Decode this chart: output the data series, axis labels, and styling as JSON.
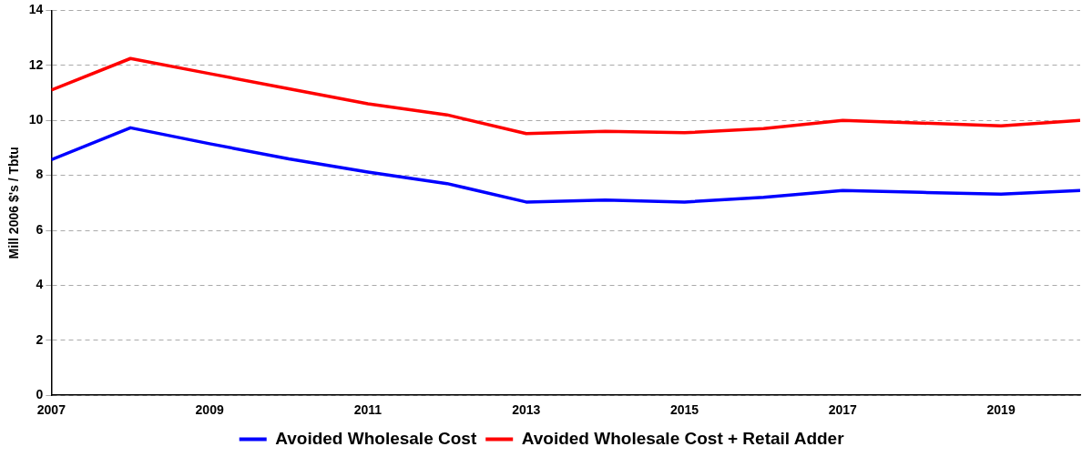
{
  "chart_data": {
    "type": "line",
    "ylabel": "Mill 2006 $'s / Tbtu",
    "x": [
      2007,
      2008,
      2009,
      2010,
      2011,
      2012,
      2013,
      2014,
      2015,
      2016,
      2017,
      2018,
      2019,
      2020
    ],
    "xlim": [
      2007,
      2020
    ],
    "xticks": [
      2007,
      2009,
      2011,
      2013,
      2015,
      2017,
      2019
    ],
    "ylim": [
      0,
      14
    ],
    "yticks": [
      0,
      2,
      4,
      6,
      8,
      10,
      12,
      14
    ],
    "grid": "y",
    "legend": "bottom",
    "marker": "none",
    "series": [
      {
        "name": "Avoided Wholesale Cost",
        "color": "#0000ff",
        "values": [
          8.57,
          9.73,
          9.15,
          8.6,
          8.12,
          7.7,
          7.03,
          7.1,
          7.03,
          7.2,
          7.45,
          7.38,
          7.32,
          7.45
        ]
      },
      {
        "name": "Avoided Wholesale Cost + Retail Adder",
        "color": "#ff0000",
        "values": [
          11.1,
          12.25,
          11.7,
          11.15,
          10.6,
          10.2,
          9.52,
          9.6,
          9.55,
          9.7,
          10.0,
          9.9,
          9.8,
          10.0
        ]
      }
    ]
  }
}
